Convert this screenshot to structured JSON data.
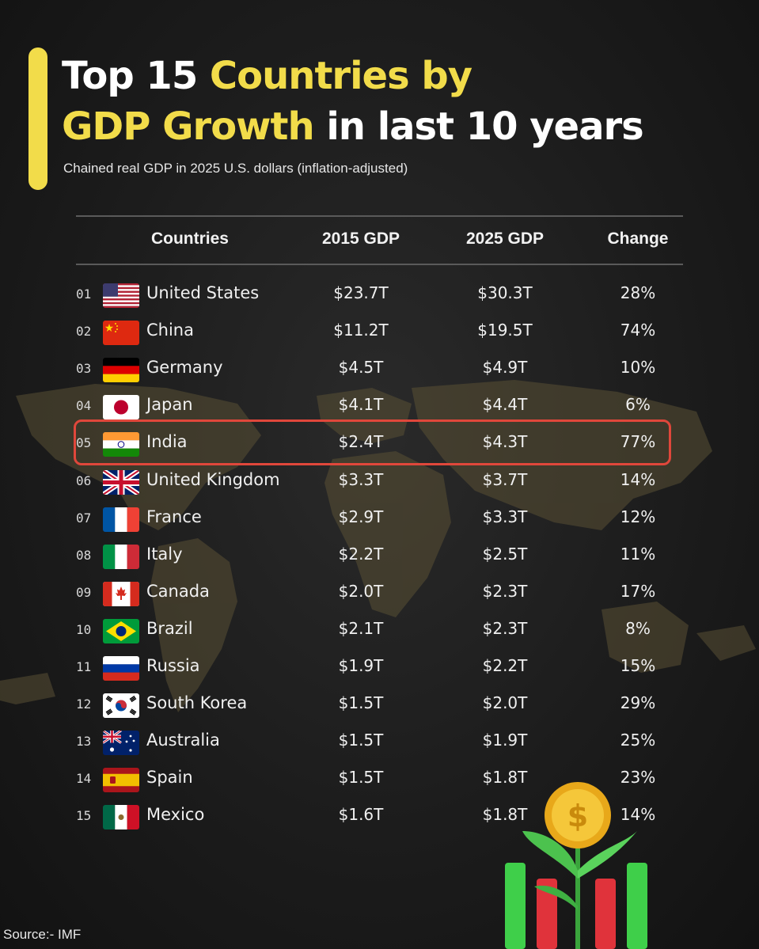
{
  "header": {
    "title_part1": "Top 15 ",
    "title_part2": "Countries by",
    "title_part3": "GDP Growth",
    "title_part4": " in last 10 years",
    "subtitle": "Chained real GDP in 2025 U.S. dollars (inflation-adjusted)"
  },
  "columns": {
    "countries": "Countries",
    "gdp2015": "2015 GDP",
    "gdp2025": "2025 GDP",
    "change": "Change"
  },
  "rows": [
    {
      "rank": "01",
      "country": "United States",
      "flag": "us-flag-icon",
      "gdp2015": "$23.7T",
      "gdp2025": "$30.3T",
      "change": "28%"
    },
    {
      "rank": "02",
      "country": "China",
      "flag": "china-flag-icon",
      "gdp2015": "$11.2T",
      "gdp2025": "$19.5T",
      "change": "74%"
    },
    {
      "rank": "03",
      "country": "Germany",
      "flag": "germany-flag-icon",
      "gdp2015": "$4.5T",
      "gdp2025": "$4.9T",
      "change": "10%"
    },
    {
      "rank": "04",
      "country": "Japan",
      "flag": "japan-flag-icon",
      "gdp2015": "$4.1T",
      "gdp2025": "$4.4T",
      "change": "6%"
    },
    {
      "rank": "05",
      "country": "India",
      "flag": "india-flag-icon",
      "gdp2015": "$2.4T",
      "gdp2025": "$4.3T",
      "change": "77%"
    },
    {
      "rank": "06",
      "country": "United Kingdom",
      "flag": "uk-flag-icon",
      "gdp2015": "$3.3T",
      "gdp2025": "$3.7T",
      "change": "14%"
    },
    {
      "rank": "07",
      "country": "France",
      "flag": "france-flag-icon",
      "gdp2015": "$2.9T",
      "gdp2025": "$3.3T",
      "change": "12%"
    },
    {
      "rank": "08",
      "country": "Italy",
      "flag": "italy-flag-icon",
      "gdp2015": "$2.2T",
      "gdp2025": "$2.5T",
      "change": "11%"
    },
    {
      "rank": "09",
      "country": "Canada",
      "flag": "canada-flag-icon",
      "gdp2015": "$2.0T",
      "gdp2025": "$2.3T",
      "change": "17%"
    },
    {
      "rank": "10",
      "country": "Brazil",
      "flag": "brazil-flag-icon",
      "gdp2015": "$2.1T",
      "gdp2025": "$2.3T",
      "change": "8%"
    },
    {
      "rank": "11",
      "country": "Russia",
      "flag": "russia-flag-icon",
      "gdp2015": "$1.9T",
      "gdp2025": "$2.2T",
      "change": "15%"
    },
    {
      "rank": "12",
      "country": "South Korea",
      "flag": "south-korea-flag-icon",
      "gdp2015": "$1.5T",
      "gdp2025": "$2.0T",
      "change": "29%"
    },
    {
      "rank": "13",
      "country": "Australia",
      "flag": "australia-flag-icon",
      "gdp2015": "$1.5T",
      "gdp2025": "$1.9T",
      "change": "25%"
    },
    {
      "rank": "14",
      "country": "Spain",
      "flag": "spain-flag-icon",
      "gdp2015": "$1.5T",
      "gdp2025": "$1.8T",
      "change": "23%"
    },
    {
      "rank": "15",
      "country": "Mexico",
      "flag": "mexico-flag-icon",
      "gdp2015": "$1.6T",
      "gdp2025": "$1.8T",
      "change": "14%"
    }
  ],
  "highlighted_country": "India",
  "footer": {
    "source": "Source:-  IMF"
  },
  "colors": {
    "accent": "#f2dc4a",
    "highlight_border": "#e0473b",
    "background": "#1c1c1c"
  }
}
